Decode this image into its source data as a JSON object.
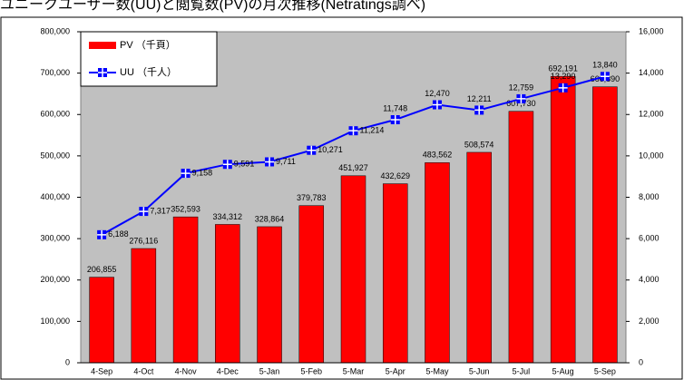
{
  "chart_data": {
    "type": "bar_line",
    "title": "ユニークユーザー数(UU)と閲覧数(PV)の月次推移(Netratings調べ)",
    "categories": [
      "4-Sep",
      "4-Oct",
      "4-Nov",
      "4-Dec",
      "5-Jan",
      "5-Feb",
      "5-Mar",
      "5-Apr",
      "5-May",
      "5-Jun",
      "5-Jul",
      "5-Aug",
      "5-Sep"
    ],
    "series": [
      {
        "name": "PV （千頁）",
        "color": "#ff0000",
        "type": "bar",
        "values": [
          206855,
          276116,
          352593,
          334312,
          328864,
          379783,
          451927,
          432629,
          483562,
          508574,
          607730,
          692191,
          666890
        ],
        "value_labels": [
          "206,855",
          "276,116",
          "352,593",
          "334,312",
          "328,864",
          "379,783",
          "451,927",
          "432,629",
          "483,562",
          "508,574",
          "607,730",
          "692,191",
          "666,890"
        ]
      },
      {
        "name": "UU （千人）",
        "color": "#0000ff",
        "type": "line",
        "axis": "y2",
        "values": [
          6188,
          7317,
          9158,
          9591,
          9711,
          10271,
          11214,
          11748,
          12470,
          12211,
          12759,
          13290,
          13840
        ],
        "value_labels": [
          "6,188",
          "7,317",
          "9,158",
          "9,591",
          "9,711",
          "10,271",
          "11,214",
          "11,748",
          "12,470",
          "12,211",
          "12,759",
          "13,290",
          "13,840"
        ]
      }
    ],
    "ylim": [
      0,
      800000
    ],
    "yticks": [
      0,
      {
        "value": 100000,
        "label": "100,000"
      },
      {
        "value": 200000,
        "label": "200,000"
      },
      {
        "value": 300000,
        "label": "300,000"
      },
      {
        "value": 400000,
        "label": "400,000"
      },
      {
        "value": 500000,
        "label": "500,000"
      },
      {
        "value": 600000,
        "label": "600,000"
      },
      {
        "value": 700000,
        "label": "700,000"
      },
      {
        "value": 800000,
        "label": "800,000"
      }
    ],
    "y2lim": [
      0,
      16000
    ],
    "y2ticks": [
      0,
      {
        "value": 2000,
        "label": "2,000"
      },
      {
        "value": 4000,
        "label": "4,000"
      },
      {
        "value": 6000,
        "label": "6,000"
      },
      {
        "value": 8000,
        "label": "8,000"
      },
      {
        "value": 10000,
        "label": "10,000"
      },
      {
        "value": 12000,
        "label": "12,000"
      },
      {
        "value": 14000,
        "label": "14,000"
      },
      {
        "value": 16000,
        "label": "16,000"
      }
    ],
    "legend": "upper left"
  }
}
